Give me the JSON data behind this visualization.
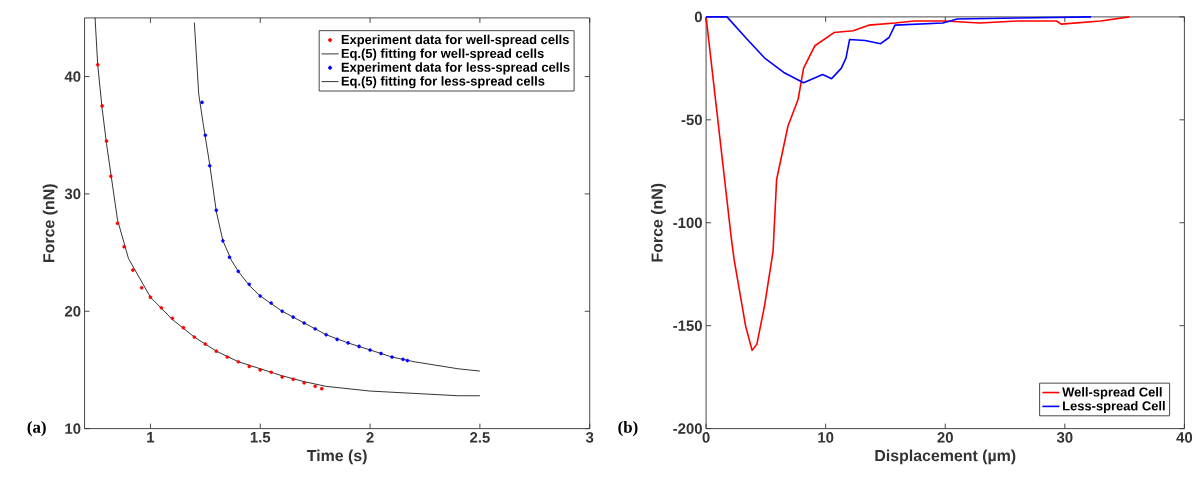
{
  "chart_data": [
    {
      "type": "scatter",
      "xlabel": "Time (s)",
      "ylabel": "Force (nN)",
      "xlim": [
        0.7,
        3
      ],
      "ylim": [
        10,
        45
      ],
      "xticks": [
        1,
        1.5,
        2,
        2.5,
        3
      ],
      "yticks": [
        10,
        20,
        30,
        40
      ],
      "grid": false,
      "legend": "top right",
      "annotations": [
        "(a)"
      ],
      "series": [
        {
          "name": "Experiment data for well-spread cells",
          "type": "scatter",
          "marker": "circle",
          "color": "#ff0000",
          "x": [
            0.76,
            0.78,
            0.8,
            0.82,
            0.85,
            0.88,
            0.92,
            0.96,
            1.0,
            1.05,
            1.1,
            1.15,
            1.2,
            1.25,
            1.3,
            1.35,
            1.4,
            1.45,
            1.5,
            1.55,
            1.6,
            1.65,
            1.7,
            1.75,
            1.78
          ],
          "values": [
            41,
            37.5,
            34.5,
            31.5,
            27.5,
            25.5,
            23.5,
            22,
            21.2,
            20.3,
            19.4,
            18.6,
            17.8,
            17.2,
            16.6,
            16.1,
            15.7,
            15.3,
            15.0,
            14.8,
            14.4,
            14.2,
            13.9,
            13.6,
            13.4
          ]
        },
        {
          "name": "Eq.(5) fitting for well-spread cells",
          "type": "line",
          "marker": "none",
          "color": "#000000",
          "x": [
            0.748,
            0.76,
            0.78,
            0.8,
            0.85,
            0.9,
            1.0,
            1.1,
            1.2,
            1.3,
            1.4,
            1.5,
            1.6,
            1.7,
            1.8,
            1.9,
            2.0,
            2.1,
            2.2,
            2.3,
            2.4,
            2.5
          ],
          "values": [
            45,
            41,
            37.3,
            34.3,
            27.8,
            24.5,
            21.2,
            19.3,
            17.8,
            16.6,
            15.7,
            15.1,
            14.5,
            14.0,
            13.6,
            13.4,
            13.2,
            13.1,
            13.0,
            12.9,
            12.8,
            12.8
          ]
        },
        {
          "name": "Experiment data for less-spread cells",
          "type": "scatter",
          "marker": "circle",
          "color": "#0000ff",
          "x": [
            1.235,
            1.25,
            1.27,
            1.3,
            1.33,
            1.36,
            1.4,
            1.45,
            1.5,
            1.55,
            1.6,
            1.65,
            1.7,
            1.75,
            1.8,
            1.85,
            1.9,
            1.95,
            2.0,
            2.05,
            2.1,
            2.15,
            2.17
          ],
          "values": [
            37.8,
            35,
            32.4,
            28.6,
            26,
            24.6,
            23.4,
            22.3,
            21.3,
            20.7,
            20.0,
            19.5,
            19.0,
            18.5,
            18.0,
            17.6,
            17.3,
            17.0,
            16.7,
            16.4,
            16.1,
            15.9,
            15.8
          ]
        },
        {
          "name": "Eq.(5) fitting for less-spread cells",
          "type": "line",
          "marker": "none",
          "color": "#000000",
          "x": [
            1.2,
            1.22,
            1.24,
            1.27,
            1.3,
            1.33,
            1.37,
            1.4,
            1.45,
            1.5,
            1.6,
            1.7,
            1.8,
            1.9,
            2.0,
            2.1,
            2.2,
            2.3,
            2.4,
            2.5
          ],
          "values": [
            44.6,
            38.5,
            36,
            32.5,
            28.5,
            26,
            24.3,
            23.4,
            22.2,
            21.3,
            20.0,
            19.0,
            18.0,
            17.3,
            16.7,
            16.1,
            15.7,
            15.4,
            15.1,
            14.9
          ]
        }
      ]
    },
    {
      "type": "line",
      "xlabel": "Displacement (µm)",
      "ylabel": "Force (nN)",
      "xlim": [
        0,
        40
      ],
      "ylim": [
        -200,
        0
      ],
      "xticks": [
        0,
        10,
        20,
        30,
        40
      ],
      "yticks": [
        0,
        -50,
        -100,
        -150,
        -200
      ],
      "grid": false,
      "legend": "bottom right",
      "annotations": [
        "(b)"
      ],
      "series": [
        {
          "name": "Well-spread Cell",
          "color": "#ff0000",
          "x": [
            0,
            2.1,
            2.35,
            3.3,
            3.85,
            4.25,
            4.9,
            5.6,
            5.9,
            6.85,
            7.7,
            8.15,
            9.1,
            10.7,
            12.3,
            13.6,
            15.8,
            17.4,
            20,
            22.9,
            26,
            29.3,
            29.7,
            33,
            35.4
          ],
          "values": [
            0,
            -107,
            -118,
            -150,
            -162,
            -159,
            -140,
            -114,
            -79,
            -53,
            -40,
            -25,
            -14,
            -7.6,
            -6.7,
            -4,
            -3,
            -2,
            -2,
            -3,
            -2,
            -2,
            -3.5,
            -2,
            0
          ]
        },
        {
          "name": "Less-spread Cell",
          "color": "#0000ff",
          "x": [
            0,
            1.75,
            3.3,
            4.9,
            6.5,
            8.15,
            9.75,
            10.5,
            11.3,
            11.7,
            12.0,
            13.3,
            14.6,
            15.3,
            15.8,
            19.8,
            21,
            26,
            32.2
          ],
          "values": [
            0,
            0,
            -10,
            -20,
            -27,
            -32,
            -28,
            -30,
            -25,
            -20,
            -11,
            -11.5,
            -13,
            -10,
            -4,
            -3,
            -1,
            -0.5,
            0
          ]
        }
      ]
    }
  ]
}
